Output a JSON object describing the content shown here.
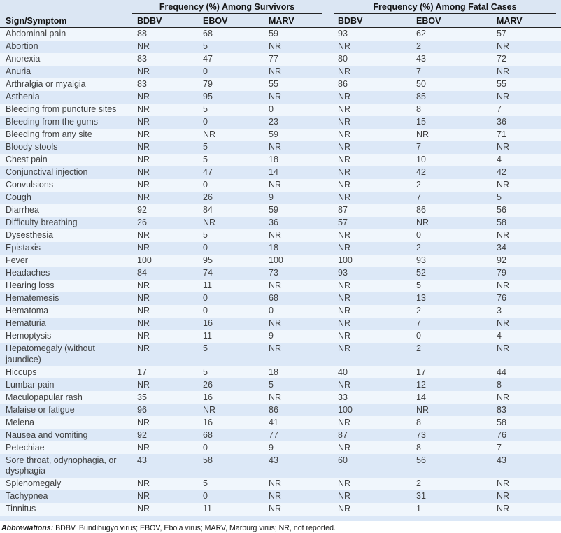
{
  "table": {
    "col1_header": "Sign/Symptom",
    "groups": [
      {
        "label": "Frequency (%) Among Survivors",
        "columns": [
          "BDBV",
          "EBOV",
          "MARV"
        ]
      },
      {
        "label": "Frequency (%) Among Fatal Cases",
        "columns": [
          "BDBV",
          "EBOV",
          "MARV"
        ]
      }
    ],
    "rows": [
      {
        "symptom": "Abdominal pain",
        "survivors": [
          "88",
          "68",
          "59"
        ],
        "fatal": [
          "93",
          "62",
          "57"
        ]
      },
      {
        "symptom": "Abortion",
        "survivors": [
          "NR",
          "5",
          "NR"
        ],
        "fatal": [
          "NR",
          "2",
          "NR"
        ]
      },
      {
        "symptom": "Anorexia",
        "survivors": [
          "83",
          "47",
          "77"
        ],
        "fatal": [
          "80",
          "43",
          "72"
        ]
      },
      {
        "symptom": "Anuria",
        "survivors": [
          "NR",
          "0",
          "NR"
        ],
        "fatal": [
          "NR",
          "7",
          "NR"
        ]
      },
      {
        "symptom": "Arthralgia or myalgia",
        "survivors": [
          "83",
          "79",
          "55"
        ],
        "fatal": [
          "86",
          "50",
          "55"
        ]
      },
      {
        "symptom": "Asthenia",
        "survivors": [
          "NR",
          "95",
          "NR"
        ],
        "fatal": [
          "NR",
          "85",
          "NR"
        ]
      },
      {
        "symptom": "Bleeding from puncture sites",
        "survivors": [
          "NR",
          "5",
          "0"
        ],
        "fatal": [
          "NR",
          "8",
          "7"
        ]
      },
      {
        "symptom": "Bleeding from the gums",
        "survivors": [
          "NR",
          "0",
          "23"
        ],
        "fatal": [
          "NR",
          "15",
          "36"
        ]
      },
      {
        "symptom": "Bleeding from any site",
        "survivors": [
          "NR",
          "NR",
          "59"
        ],
        "fatal": [
          "NR",
          "NR",
          "71"
        ]
      },
      {
        "symptom": "Bloody stools",
        "survivors": [
          "NR",
          "5",
          "NR"
        ],
        "fatal": [
          "NR",
          "7",
          "NR"
        ]
      },
      {
        "symptom": "Chest pain",
        "survivors": [
          "NR",
          "5",
          "18"
        ],
        "fatal": [
          "NR",
          "10",
          "4"
        ]
      },
      {
        "symptom": "Conjunctival injection",
        "survivors": [
          "NR",
          "47",
          "14"
        ],
        "fatal": [
          "NR",
          "42",
          "42"
        ]
      },
      {
        "symptom": "Convulsions",
        "survivors": [
          "NR",
          "0",
          "NR"
        ],
        "fatal": [
          "NR",
          "2",
          "NR"
        ]
      },
      {
        "symptom": "Cough",
        "survivors": [
          "NR",
          "26",
          "9"
        ],
        "fatal": [
          "NR",
          "7",
          "5"
        ]
      },
      {
        "symptom": "Diarrhea",
        "survivors": [
          "92",
          "84",
          "59"
        ],
        "fatal": [
          "87",
          "86",
          "56"
        ]
      },
      {
        "symptom": "Difficulty breathing",
        "survivors": [
          "26",
          "NR",
          "36"
        ],
        "fatal": [
          "57",
          "NR",
          "58"
        ]
      },
      {
        "symptom": "Dysesthesia",
        "survivors": [
          "NR",
          "5",
          "NR"
        ],
        "fatal": [
          "NR",
          "0",
          "NR"
        ]
      },
      {
        "symptom": "Epistaxis",
        "survivors": [
          "NR",
          "0",
          "18"
        ],
        "fatal": [
          "NR",
          "2",
          "34"
        ]
      },
      {
        "symptom": "Fever",
        "survivors": [
          "100",
          "95",
          "100"
        ],
        "fatal": [
          "100",
          "93",
          "92"
        ]
      },
      {
        "symptom": "Headaches",
        "survivors": [
          "84",
          "74",
          "73"
        ],
        "fatal": [
          "93",
          "52",
          "79"
        ]
      },
      {
        "symptom": "Hearing loss",
        "survivors": [
          "NR",
          "11",
          "NR"
        ],
        "fatal": [
          "NR",
          "5",
          "NR"
        ]
      },
      {
        "symptom": "Hematemesis",
        "survivors": [
          "NR",
          "0",
          "68"
        ],
        "fatal": [
          "NR",
          "13",
          "76"
        ]
      },
      {
        "symptom": "Hematoma",
        "survivors": [
          "NR",
          "0",
          "0"
        ],
        "fatal": [
          "NR",
          "2",
          "3"
        ]
      },
      {
        "symptom": "Hematuria",
        "survivors": [
          "NR",
          "16",
          "NR"
        ],
        "fatal": [
          "NR",
          "7",
          "NR"
        ]
      },
      {
        "symptom": "Hemoptysis",
        "survivors": [
          "NR",
          "11",
          "9"
        ],
        "fatal": [
          "NR",
          "0",
          "4"
        ]
      },
      {
        "symptom": "Hepatomegaly (without jaundice)",
        "survivors": [
          "NR",
          "5",
          "NR"
        ],
        "fatal": [
          "NR",
          "2",
          "NR"
        ]
      },
      {
        "symptom": "Hiccups",
        "survivors": [
          "17",
          "5",
          "18"
        ],
        "fatal": [
          "40",
          "17",
          "44"
        ]
      },
      {
        "symptom": "Lumbar pain",
        "survivors": [
          "NR",
          "26",
          "5"
        ],
        "fatal": [
          "NR",
          "12",
          "8"
        ]
      },
      {
        "symptom": "Maculopapular rash",
        "survivors": [
          "35",
          "16",
          "NR"
        ],
        "fatal": [
          "33",
          "14",
          "NR"
        ]
      },
      {
        "symptom": "Malaise or fatigue",
        "survivors": [
          "96",
          "NR",
          "86"
        ],
        "fatal": [
          "100",
          "NR",
          "83"
        ]
      },
      {
        "symptom": "Melena",
        "survivors": [
          "NR",
          "16",
          "41"
        ],
        "fatal": [
          "NR",
          "8",
          "58"
        ]
      },
      {
        "symptom": "Nausea and vomiting",
        "survivors": [
          "92",
          "68",
          "77"
        ],
        "fatal": [
          "87",
          "73",
          "76"
        ]
      },
      {
        "symptom": "Petechiae",
        "survivors": [
          "NR",
          "0",
          "9"
        ],
        "fatal": [
          "NR",
          "8",
          "7"
        ]
      },
      {
        "symptom": "Sore throat, odynophagia, or dysphagia",
        "survivors": [
          "43",
          "58",
          "43"
        ],
        "fatal": [
          "60",
          "56",
          "43"
        ]
      },
      {
        "symptom": "Splenomegaly",
        "survivors": [
          "NR",
          "5",
          "NR"
        ],
        "fatal": [
          "NR",
          "2",
          "NR"
        ]
      },
      {
        "symptom": "Tachypnea",
        "survivors": [
          "NR",
          "0",
          "NR"
        ],
        "fatal": [
          "NR",
          "31",
          "NR"
        ]
      },
      {
        "symptom": "Tinnitus",
        "survivors": [
          "NR",
          "11",
          "NR"
        ],
        "fatal": [
          "NR",
          "1",
          "NR"
        ]
      }
    ],
    "footnote_label": "Abbreviations:",
    "footnote_text": " BDBV, Bundibugyo virus; EBOV, Ebola virus; MARV, Marburg virus; NR, not reported."
  },
  "colors": {
    "header_bg": "#dbe6f3",
    "row_light": "#f0f6fc",
    "row_blue": "#dce8f7",
    "rule": "#232323"
  }
}
